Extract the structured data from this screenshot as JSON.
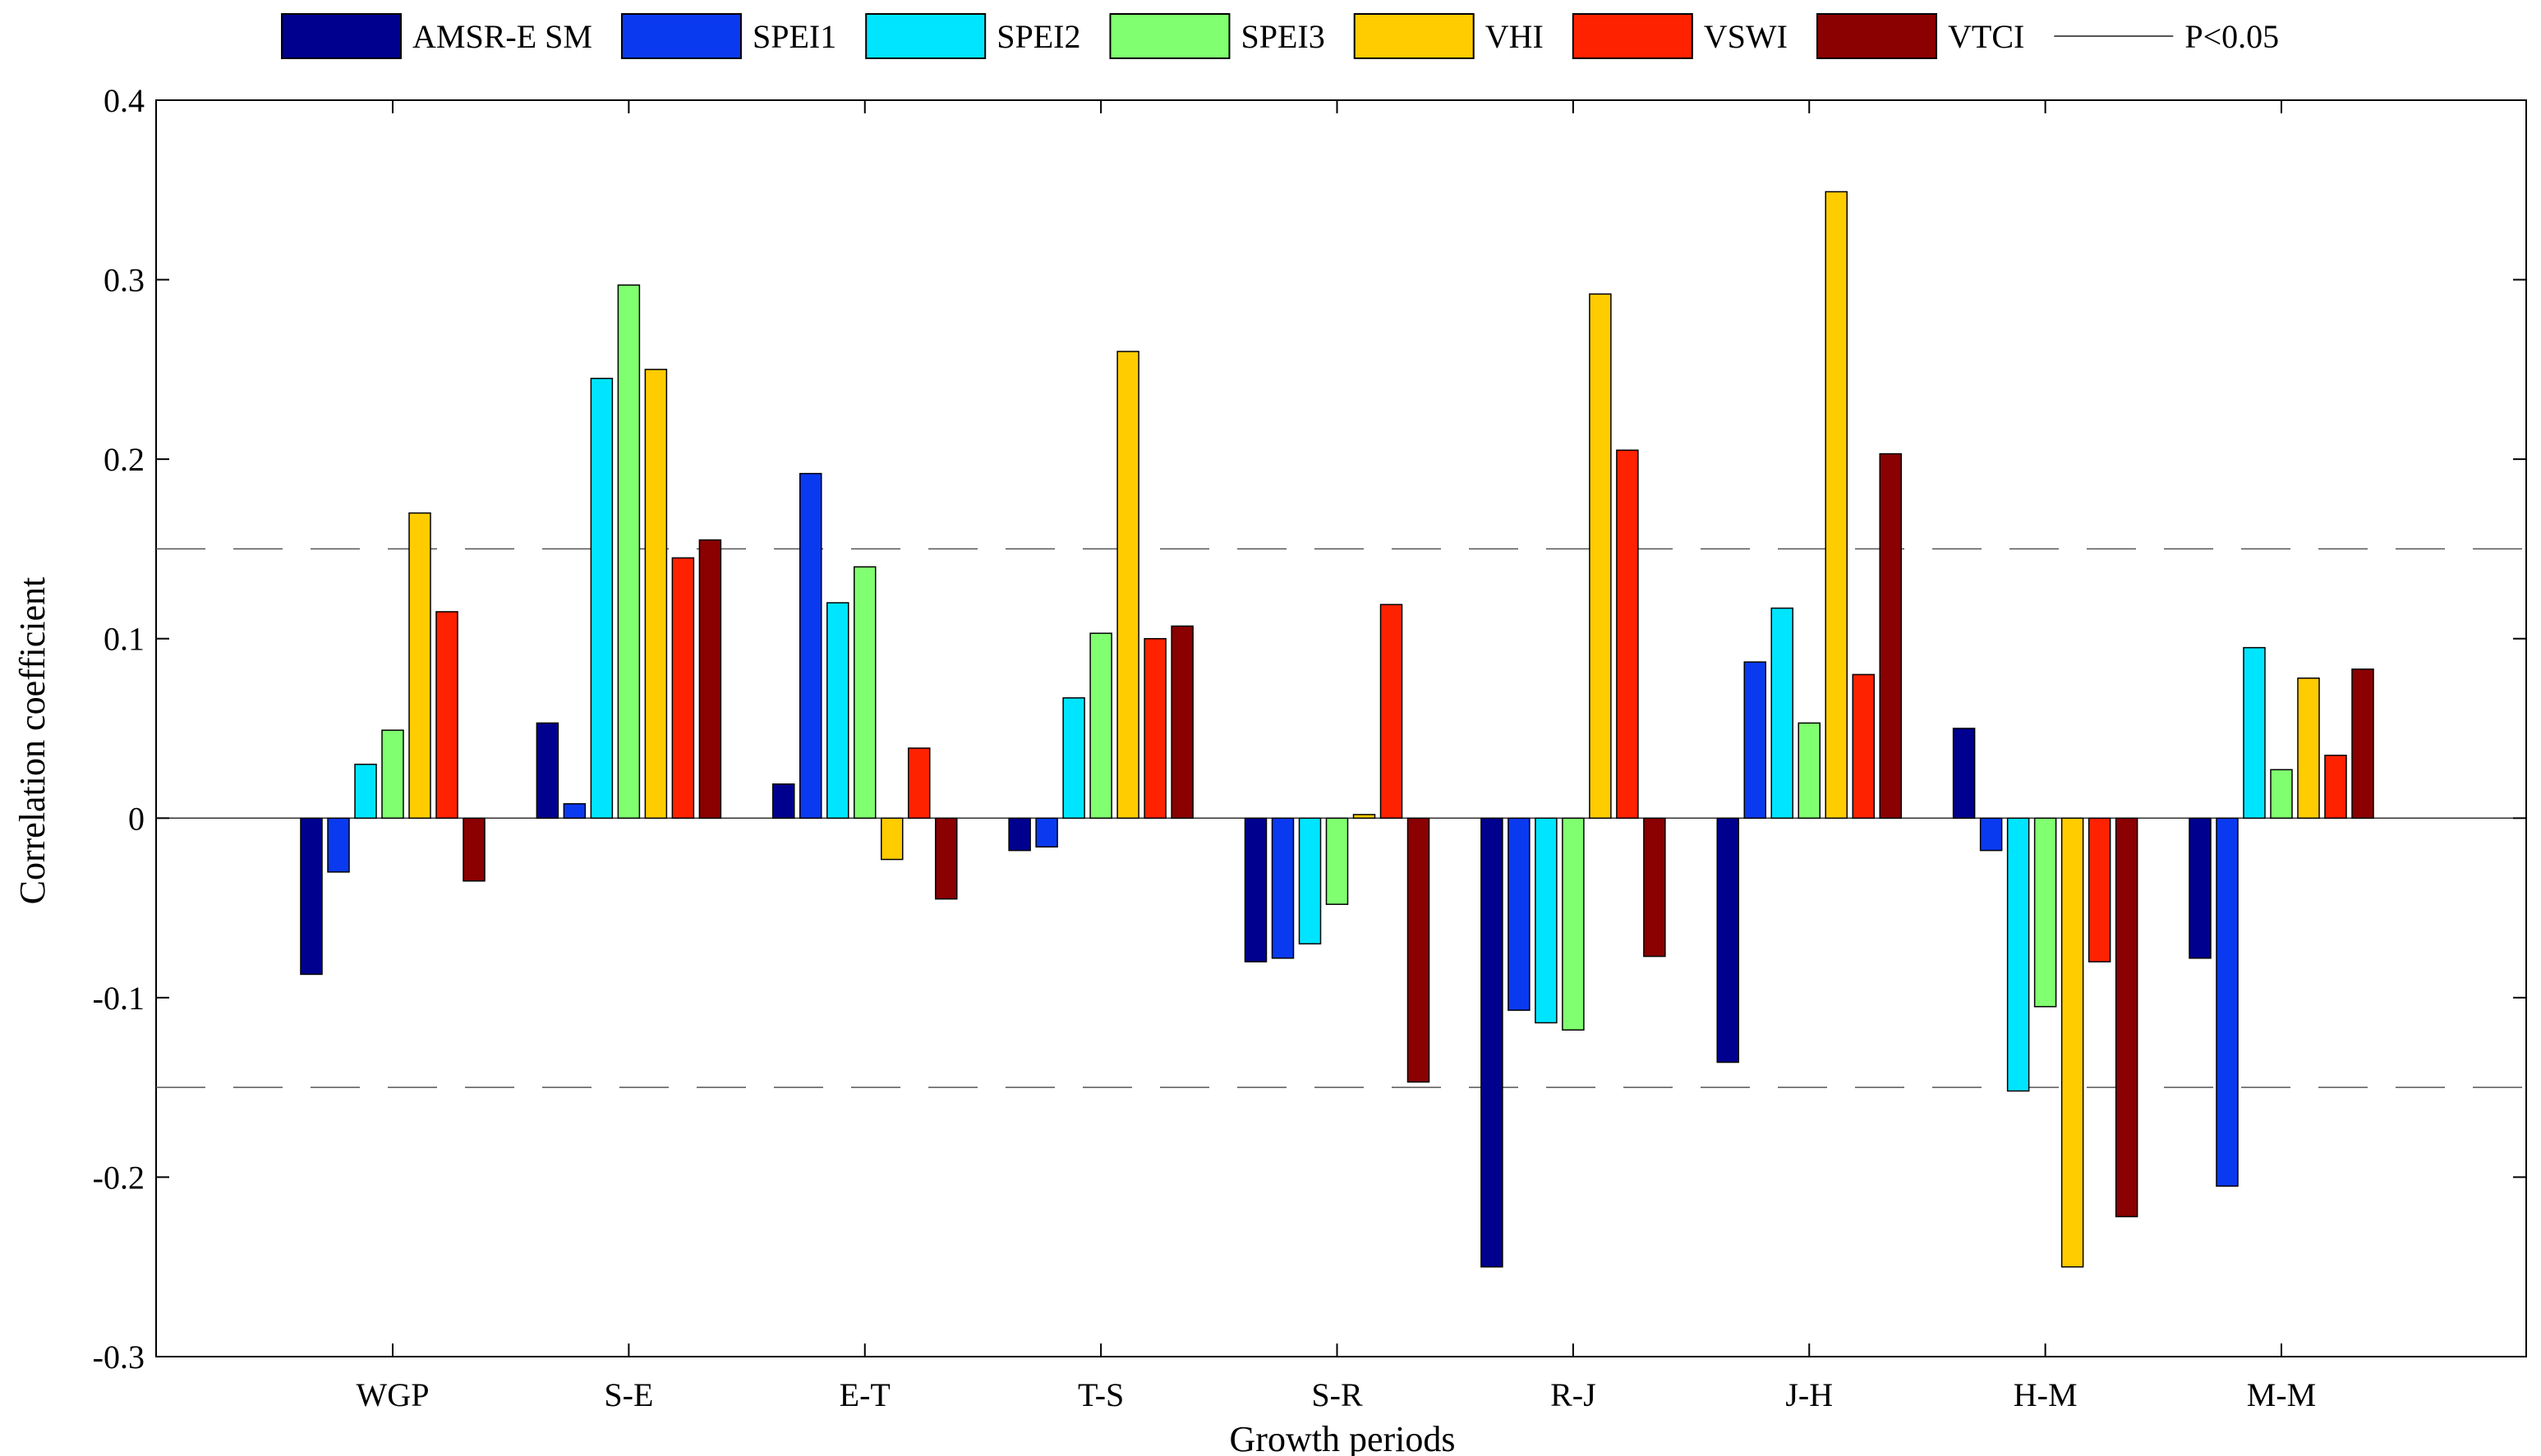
{
  "chart_data": {
    "type": "bar",
    "title": "",
    "xlabel": "Growth periods",
    "ylabel": "Correlation coefficient",
    "ylim": [
      -0.3,
      0.4
    ],
    "yticks": [
      -0.3,
      -0.2,
      -0.1,
      0,
      0.1,
      0.2,
      0.3,
      0.4
    ],
    "ytick_labels": [
      "-0.3",
      "-0.2",
      "-0.1",
      "0",
      "0.1",
      "0.2",
      "0.3",
      "0.4"
    ],
    "grid": false,
    "legend_position": "top",
    "significance": {
      "label": "P<0.05",
      "threshold": 0.15,
      "color": "#000000"
    },
    "categories": [
      "WGP",
      "S-E",
      "E-T",
      "T-S",
      "S-R",
      "R-J",
      "J-H",
      "H-M",
      "M-M"
    ],
    "series": [
      {
        "name": "AMSR-E SM",
        "color": "#00008F",
        "values": [
          -0.087,
          0.053,
          0.019,
          -0.018,
          -0.08,
          -0.25,
          -0.136,
          0.05,
          -0.078
        ]
      },
      {
        "name": "SPEI1",
        "color": "#0A3AF0",
        "values": [
          -0.03,
          0.008,
          0.192,
          -0.016,
          -0.078,
          -0.107,
          0.087,
          -0.018,
          -0.205
        ]
      },
      {
        "name": "SPEI2",
        "color": "#00E5FF",
        "values": [
          0.03,
          0.245,
          0.12,
          0.067,
          -0.07,
          -0.114,
          0.117,
          -0.152,
          0.095
        ]
      },
      {
        "name": "SPEI3",
        "color": "#80FF70",
        "values": [
          0.049,
          0.297,
          0.14,
          0.103,
          -0.048,
          -0.118,
          0.053,
          -0.105,
          0.027
        ]
      },
      {
        "name": "VHI",
        "color": "#FFCC00",
        "values": [
          0.17,
          0.25,
          -0.023,
          0.26,
          0.002,
          0.292,
          0.349,
          -0.25,
          0.078
        ]
      },
      {
        "name": "VSWI",
        "color": "#FF2200",
        "values": [
          0.115,
          0.145,
          0.039,
          0.1,
          0.119,
          0.205,
          0.08,
          -0.08,
          0.035
        ]
      },
      {
        "name": "VTCI",
        "color": "#8B0000",
        "values": [
          -0.035,
          0.155,
          -0.045,
          0.107,
          -0.147,
          -0.077,
          0.203,
          -0.222,
          0.083
        ]
      }
    ]
  }
}
